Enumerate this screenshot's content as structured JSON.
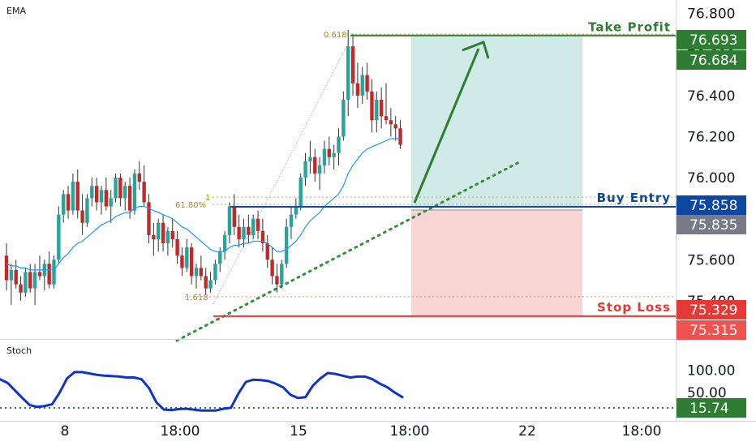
{
  "chart_data": [
    {
      "type": "candlestick",
      "indicator_label": "EMA",
      "price_axis": {
        "ticks": [
          76.8,
          76.6,
          76.4,
          76.2,
          76.0,
          75.8,
          75.6,
          75.4
        ],
        "tick_labels": [
          "76.800",
          "76.600",
          "76.400",
          "76.200",
          "76.000",
          "75.800",
          "75.600",
          "75.400"
        ],
        "ylim": [
          75.2,
          76.9
        ]
      },
      "time_axis": {
        "tick_labels": [
          "8",
          "18:00",
          "15",
          "18:00",
          "22",
          "18:00"
        ]
      },
      "candles": [
        [
          75.62,
          75.68,
          75.45,
          75.5
        ],
        [
          75.5,
          75.58,
          75.38,
          75.55
        ],
        [
          75.55,
          75.6,
          75.46,
          75.48
        ],
        [
          75.48,
          75.52,
          75.4,
          75.44
        ],
        [
          75.44,
          75.56,
          75.42,
          75.54
        ],
        [
          75.54,
          75.58,
          75.44,
          75.46
        ],
        [
          75.46,
          75.58,
          75.38,
          75.54
        ],
        [
          75.54,
          75.62,
          75.5,
          75.52
        ],
        [
          75.52,
          75.6,
          75.45,
          75.58
        ],
        [
          75.58,
          75.64,
          75.46,
          75.48
        ],
        [
          75.48,
          75.62,
          75.46,
          75.6
        ],
        [
          75.6,
          75.86,
          75.58,
          75.82
        ],
        [
          75.82,
          75.94,
          75.78,
          75.92
        ],
        [
          75.92,
          75.96,
          75.8,
          75.84
        ],
        [
          75.84,
          76.02,
          75.82,
          75.98
        ],
        [
          75.98,
          76.04,
          75.8,
          75.84
        ],
        [
          75.84,
          75.92,
          75.72,
          75.78
        ],
        [
          75.78,
          75.92,
          75.76,
          75.9
        ],
        [
          75.9,
          76.0,
          75.86,
          75.96
        ],
        [
          75.96,
          76.0,
          75.84,
          75.88
        ],
        [
          75.88,
          75.96,
          75.82,
          75.94
        ],
        [
          75.94,
          76.0,
          75.84,
          75.86
        ],
        [
          75.86,
          75.94,
          75.78,
          75.9
        ],
        [
          75.9,
          76.02,
          75.88,
          76.0
        ],
        [
          76.0,
          76.02,
          75.86,
          75.9
        ],
        [
          75.9,
          75.98,
          75.84,
          75.96
        ],
        [
          75.96,
          76.0,
          75.8,
          75.84
        ],
        [
          75.84,
          76.04,
          75.82,
          76.02
        ],
        [
          76.02,
          76.08,
          75.94,
          75.98
        ],
        [
          75.98,
          76.06,
          75.86,
          75.88
        ],
        [
          75.88,
          75.92,
          75.68,
          75.72
        ],
        [
          75.72,
          75.78,
          75.62,
          75.7
        ],
        [
          75.7,
          75.8,
          75.64,
          75.78
        ],
        [
          75.78,
          75.82,
          75.64,
          75.68
        ],
        [
          75.68,
          75.76,
          75.62,
          75.74
        ],
        [
          75.74,
          75.8,
          75.66,
          75.7
        ],
        [
          75.7,
          75.74,
          75.58,
          75.62
        ],
        [
          75.62,
          75.66,
          75.52,
          75.56
        ],
        [
          75.56,
          75.7,
          75.54,
          75.66
        ],
        [
          75.66,
          75.68,
          75.48,
          75.52
        ],
        [
          75.52,
          75.58,
          75.46,
          75.56
        ],
        [
          75.56,
          75.62,
          75.5,
          75.52
        ],
        [
          75.52,
          75.56,
          75.43,
          75.46
        ],
        [
          75.46,
          75.54,
          75.44,
          75.5
        ],
        [
          75.5,
          75.6,
          75.48,
          75.58
        ],
        [
          75.58,
          75.66,
          75.54,
          75.64
        ],
        [
          75.64,
          75.74,
          75.6,
          75.72
        ],
        [
          75.72,
          75.88,
          75.68,
          75.86
        ],
        [
          75.86,
          75.92,
          75.72,
          75.76
        ],
        [
          75.76,
          75.82,
          75.66,
          75.7
        ],
        [
          75.7,
          75.8,
          75.66,
          75.76
        ],
        [
          75.76,
          75.82,
          75.68,
          75.72
        ],
        [
          75.72,
          75.82,
          75.7,
          75.8
        ],
        [
          75.8,
          75.84,
          75.7,
          75.74
        ],
        [
          75.74,
          75.8,
          75.64,
          75.68
        ],
        [
          75.68,
          75.72,
          75.56,
          75.6
        ],
        [
          75.6,
          75.66,
          75.48,
          75.52
        ],
        [
          75.52,
          75.58,
          75.44,
          75.48
        ],
        [
          75.48,
          75.6,
          75.46,
          75.58
        ],
        [
          75.58,
          75.8,
          75.56,
          75.76
        ],
        [
          75.76,
          75.86,
          75.7,
          75.82
        ],
        [
          75.82,
          75.9,
          75.8,
          75.86
        ],
        [
          75.86,
          76.02,
          75.84,
          76.0
        ],
        [
          76.0,
          76.12,
          75.96,
          76.08
        ],
        [
          76.08,
          76.18,
          76.02,
          76.1
        ],
        [
          76.1,
          76.14,
          75.98,
          76.02
        ],
        [
          76.02,
          76.1,
          75.94,
          76.06
        ],
        [
          76.06,
          76.18,
          76.02,
          76.14
        ],
        [
          76.14,
          76.2,
          76.06,
          76.1
        ],
        [
          76.1,
          76.16,
          76.04,
          76.12
        ],
        [
          76.12,
          76.24,
          76.06,
          76.2
        ],
        [
          76.2,
          76.42,
          76.18,
          76.38
        ],
        [
          76.38,
          76.72,
          76.3,
          76.64
        ],
        [
          76.64,
          76.7,
          76.4,
          76.46
        ],
        [
          76.46,
          76.56,
          76.34,
          76.4
        ],
        [
          76.4,
          76.54,
          76.36,
          76.5
        ],
        [
          76.5,
          76.56,
          76.38,
          76.42
        ],
        [
          76.42,
          76.48,
          76.22,
          76.28
        ],
        [
          76.28,
          76.42,
          76.22,
          76.38
        ],
        [
          76.38,
          76.44,
          76.24,
          76.3
        ],
        [
          76.3,
          76.46,
          76.26,
          76.28
        ],
        [
          76.28,
          76.34,
          76.2,
          76.26
        ],
        [
          76.26,
          76.3,
          76.18,
          76.24
        ],
        [
          76.24,
          76.28,
          76.14,
          76.16
        ]
      ],
      "ema": [
        75.58,
        75.57,
        75.57,
        75.56,
        75.56,
        75.55,
        75.55,
        75.55,
        75.55,
        75.55,
        75.55,
        75.58,
        75.61,
        75.63,
        75.66,
        75.68,
        75.69,
        75.71,
        75.73,
        75.75,
        75.77,
        75.78,
        75.79,
        75.81,
        75.82,
        75.83,
        75.83,
        75.85,
        75.86,
        75.86,
        75.85,
        75.84,
        75.83,
        75.82,
        75.81,
        75.8,
        75.78,
        75.76,
        75.75,
        75.73,
        75.71,
        75.69,
        75.67,
        75.65,
        75.64,
        75.64,
        75.64,
        75.66,
        75.67,
        75.67,
        75.68,
        75.68,
        75.69,
        75.69,
        75.69,
        75.68,
        75.66,
        75.64,
        75.64,
        75.65,
        75.67,
        75.69,
        75.72,
        75.76,
        75.79,
        75.81,
        75.83,
        75.86,
        75.88,
        75.9,
        75.92,
        75.96,
        76.02,
        76.06,
        76.09,
        76.12,
        76.14,
        76.15,
        76.16,
        76.17,
        76.18,
        76.19,
        76.19,
        76.19
      ],
      "fibonacci": {
        "upper_labels": [
          "0.618",
          "1",
          "61.80%"
        ],
        "lower_label": "1.618",
        "levels": [
          76.7,
          75.905,
          75.87,
          75.42
        ]
      },
      "trendline_note": "",
      "trade_setup": {
        "take_profit_label": "Take Profit",
        "buy_entry_label": "Buy Entry",
        "stop_loss_label": "Stop Loss",
        "take_profit": 76.693,
        "buy_entry": 75.858,
        "stop_loss": 75.329
      },
      "price_tags": [
        {
          "value": "76.693",
          "color": "#2e7d32"
        },
        {
          "value": "76.684",
          "color": "#2e7d32"
        },
        {
          "value": "75.858",
          "color": "#0d47a1"
        },
        {
          "value": "75.835",
          "color": "#787b86"
        },
        {
          "value": "75.329",
          "color": "#e53935"
        },
        {
          "value": "75.315",
          "color": "#ef5350"
        }
      ],
      "colors": {
        "up": "#26a69a",
        "down": "#c62828",
        "ema": "#2196f3",
        "take_profit": "#2e7d32",
        "buy_entry": "#0d47a1",
        "stop_loss": "#e53935",
        "profit_zone": "#cfeae7",
        "loss_zone": "#f9d5d3"
      }
    },
    {
      "type": "line",
      "indicator_label": "Stoch",
      "ticks": [
        "100.00",
        "50.00"
      ],
      "tick_values": [
        100,
        50
      ],
      "level_value": 15.74,
      "level_label": "15.74",
      "values": [
        80,
        72,
        55,
        38,
        22,
        18,
        20,
        24,
        50,
        82,
        96,
        96,
        93,
        90,
        88,
        87,
        86,
        84,
        84,
        80,
        60,
        28,
        12,
        11,
        13,
        14,
        12,
        10,
        10,
        10,
        14,
        16,
        48,
        74,
        79,
        78,
        76,
        70,
        62,
        45,
        38,
        40,
        66,
        82,
        94,
        92,
        88,
        84,
        86,
        86,
        80,
        70,
        62,
        50,
        40
      ],
      "ylim": [
        0,
        110
      ],
      "color": "#1033c8",
      "level_color": "#2e7d32"
    }
  ]
}
